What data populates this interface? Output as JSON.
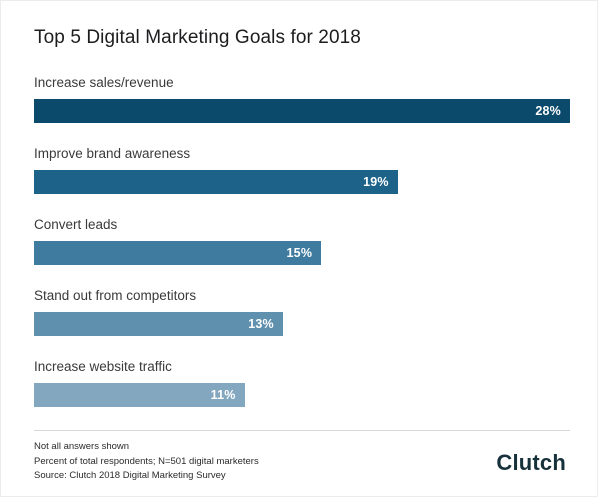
{
  "chart_data": {
    "type": "bar",
    "orientation": "horizontal",
    "title": "Top 5 Digital Marketing Goals for 2018",
    "categories": [
      "Increase sales/revenue",
      "Improve brand awareness",
      "Convert leads",
      "Stand out from competitors",
      "Increase website traffic"
    ],
    "values": [
      28,
      19,
      15,
      13,
      11
    ],
    "value_labels": [
      "28%",
      "19%",
      "15%",
      "13%",
      "11%"
    ],
    "xlim": [
      0,
      28
    ],
    "bar_colors": [
      "#0c4a6b",
      "#1d6389",
      "#3e7b9e",
      "#5f90ae",
      "#84a7c0"
    ],
    "grid": false,
    "legend": false
  },
  "footnotes": {
    "line1": "Not all answers shown",
    "line2": "Percent of total respondents; N=501 digital marketers",
    "line3": "Source: Clutch 2018 Digital Marketing Survey"
  },
  "logo": {
    "text": "Clutch"
  }
}
